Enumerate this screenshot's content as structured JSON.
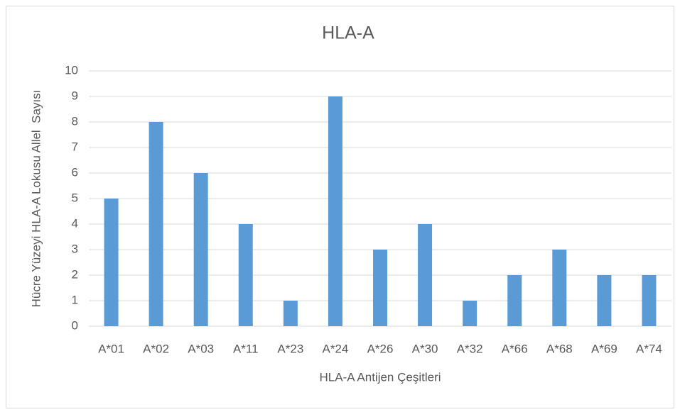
{
  "chart_data": {
    "type": "bar",
    "title": "HLA-A",
    "x_label": "HLA-A Antijen Çeşitleri",
    "y_label": "Hücre Yüzeyi HLA-A Lokusu Allel  Sayısı",
    "categories": [
      "A*01",
      "A*02",
      "A*03",
      "A*11",
      "A*23",
      "A*24",
      "A*26",
      "A*30",
      "A*32",
      "A*66",
      "A*68",
      "A*69",
      "A*74"
    ],
    "values": [
      5,
      8,
      6,
      4,
      1,
      9,
      3,
      4,
      1,
      2,
      3,
      2,
      2
    ],
    "color": "#5b9bd5",
    "ylim": [
      0,
      10
    ],
    "yticks": [
      0,
      1,
      2,
      3,
      4,
      5,
      6,
      7,
      8,
      9,
      10
    ],
    "grid": true
  }
}
